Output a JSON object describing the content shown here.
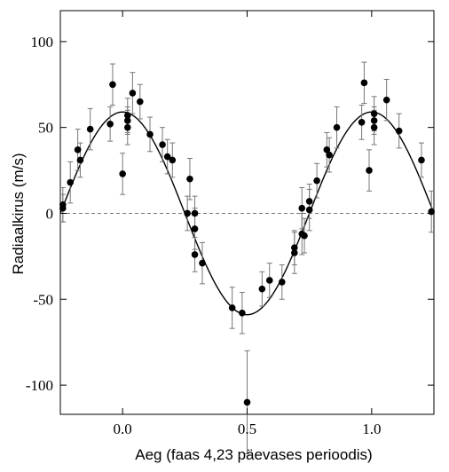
{
  "chart_data": {
    "type": "scatter",
    "xlabel": "Aeg (faas 4,23 päevases perioodis)",
    "ylabel": "Radiaalkirus (m/s)",
    "xlim": [
      -0.25,
      1.25
    ],
    "ylim": [
      -117,
      118
    ],
    "x_ticks": [
      0.0,
      0.5,
      1.0
    ],
    "x_tick_labels": [
      "0.0",
      "0.5",
      "1.0"
    ],
    "y_ticks": [
      -100,
      -50,
      0,
      50,
      100
    ],
    "y_tick_labels": [
      "-100",
      "-50",
      "0",
      "50",
      "100"
    ],
    "grid": false,
    "zero_line": true,
    "fit_curve": {
      "amplitude": 59,
      "peak_phase": 0.0,
      "offset": 0
    },
    "points": [
      {
        "x": -0.24,
        "y": 5,
        "err": 10
      },
      {
        "x": -0.24,
        "y": 3,
        "err": 8
      },
      {
        "x": -0.21,
        "y": 18,
        "err": 12
      },
      {
        "x": -0.18,
        "y": 37,
        "err": 12
      },
      {
        "x": -0.17,
        "y": 31,
        "err": 10
      },
      {
        "x": -0.13,
        "y": 49,
        "err": 12
      },
      {
        "x": -0.05,
        "y": 52,
        "err": 10
      },
      {
        "x": -0.04,
        "y": 75,
        "err": 12
      },
      {
        "x": 0.0,
        "y": 23,
        "err": 12
      },
      {
        "x": 0.02,
        "y": 57,
        "err": 10
      },
      {
        "x": 0.02,
        "y": 54,
        "err": 8
      },
      {
        "x": 0.02,
        "y": 50,
        "err": 10
      },
      {
        "x": 0.04,
        "y": 70,
        "err": 12
      },
      {
        "x": 0.07,
        "y": 65,
        "err": 10
      },
      {
        "x": 0.11,
        "y": 46,
        "err": 10
      },
      {
        "x": 0.16,
        "y": 40,
        "err": 10
      },
      {
        "x": 0.18,
        "y": 33,
        "err": 10
      },
      {
        "x": 0.2,
        "y": 31,
        "err": 10
      },
      {
        "x": 0.26,
        "y": 0,
        "err": 10
      },
      {
        "x": 0.27,
        "y": 20,
        "err": 12
      },
      {
        "x": 0.29,
        "y": -9,
        "err": 12
      },
      {
        "x": 0.29,
        "y": 0,
        "err": 10
      },
      {
        "x": 0.29,
        "y": -24,
        "err": 10
      },
      {
        "x": 0.32,
        "y": -29,
        "err": 12
      },
      {
        "x": 0.44,
        "y": -55,
        "err": 12
      },
      {
        "x": 0.48,
        "y": -58,
        "err": 12
      },
      {
        "x": 0.5,
        "y": -110,
        "err": 30
      },
      {
        "x": 0.56,
        "y": -44,
        "err": 10
      },
      {
        "x": 0.59,
        "y": -39,
        "err": 10
      },
      {
        "x": 0.64,
        "y": -40,
        "err": 10
      },
      {
        "x": 0.69,
        "y": -23,
        "err": 12
      },
      {
        "x": 0.69,
        "y": -20,
        "err": 10
      },
      {
        "x": 0.72,
        "y": 3,
        "err": 12
      },
      {
        "x": 0.72,
        "y": -12,
        "err": 12
      },
      {
        "x": 0.73,
        "y": -13,
        "err": 10
      },
      {
        "x": 0.75,
        "y": 7,
        "err": 10
      },
      {
        "x": 0.75,
        "y": 2,
        "err": 12
      },
      {
        "x": 0.78,
        "y": 19,
        "err": 10
      },
      {
        "x": 0.82,
        "y": 37,
        "err": 10
      },
      {
        "x": 0.83,
        "y": 34,
        "err": 10
      },
      {
        "x": 0.86,
        "y": 50,
        "err": 12
      },
      {
        "x": 0.96,
        "y": 53,
        "err": 10
      },
      {
        "x": 0.97,
        "y": 76,
        "err": 12
      },
      {
        "x": 0.99,
        "y": 25,
        "err": 12
      },
      {
        "x": 1.01,
        "y": 58,
        "err": 10
      },
      {
        "x": 1.01,
        "y": 54,
        "err": 8
      },
      {
        "x": 1.01,
        "y": 50,
        "err": 10
      },
      {
        "x": 1.06,
        "y": 66,
        "err": 12
      },
      {
        "x": 1.11,
        "y": 48,
        "err": 10
      },
      {
        "x": 1.2,
        "y": 31,
        "err": 10
      },
      {
        "x": 1.24,
        "y": 1,
        "err": 12
      }
    ]
  }
}
